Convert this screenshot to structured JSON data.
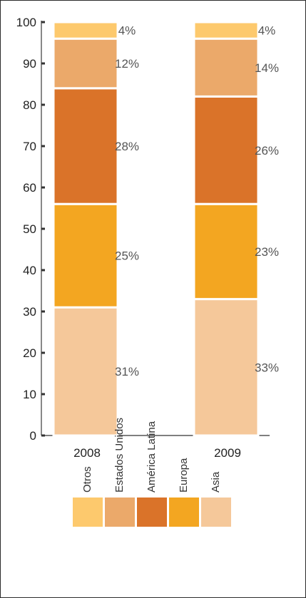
{
  "chart_data": {
    "type": "bar",
    "stacked": true,
    "title": "",
    "xlabel": "",
    "ylabel": "",
    "ylim": [
      0,
      100
    ],
    "yticks": [
      0,
      10,
      20,
      30,
      40,
      50,
      60,
      70,
      80,
      90,
      100
    ],
    "grid": false,
    "categories": [
      "2008",
      "2009"
    ],
    "series": [
      {
        "name": "Asia",
        "values": [
          31,
          33
        ],
        "labels": [
          "31%",
          "33%"
        ],
        "color": "#F5C89A"
      },
      {
        "name": "Europa",
        "values": [
          25,
          23
        ],
        "labels": [
          "25%",
          "23%"
        ],
        "color": "#F3A621"
      },
      {
        "name": "América Latina",
        "values": [
          28,
          26
        ],
        "labels": [
          "28%",
          "26%"
        ],
        "color": "#DA7329"
      },
      {
        "name": "Estados Unidos",
        "values": [
          12,
          14
        ],
        "labels": [
          "12%",
          "14%"
        ],
        "color": "#EBA96A"
      },
      {
        "name": "Otros",
        "values": [
          4,
          4
        ],
        "labels": [
          "4%",
          "4%"
        ],
        "color": "#FDC96D"
      }
    ],
    "legend_position": "bottom",
    "legend_order": [
      "Otros",
      "Estados Unidos",
      "América Latina",
      "Europa",
      "Asia"
    ]
  }
}
